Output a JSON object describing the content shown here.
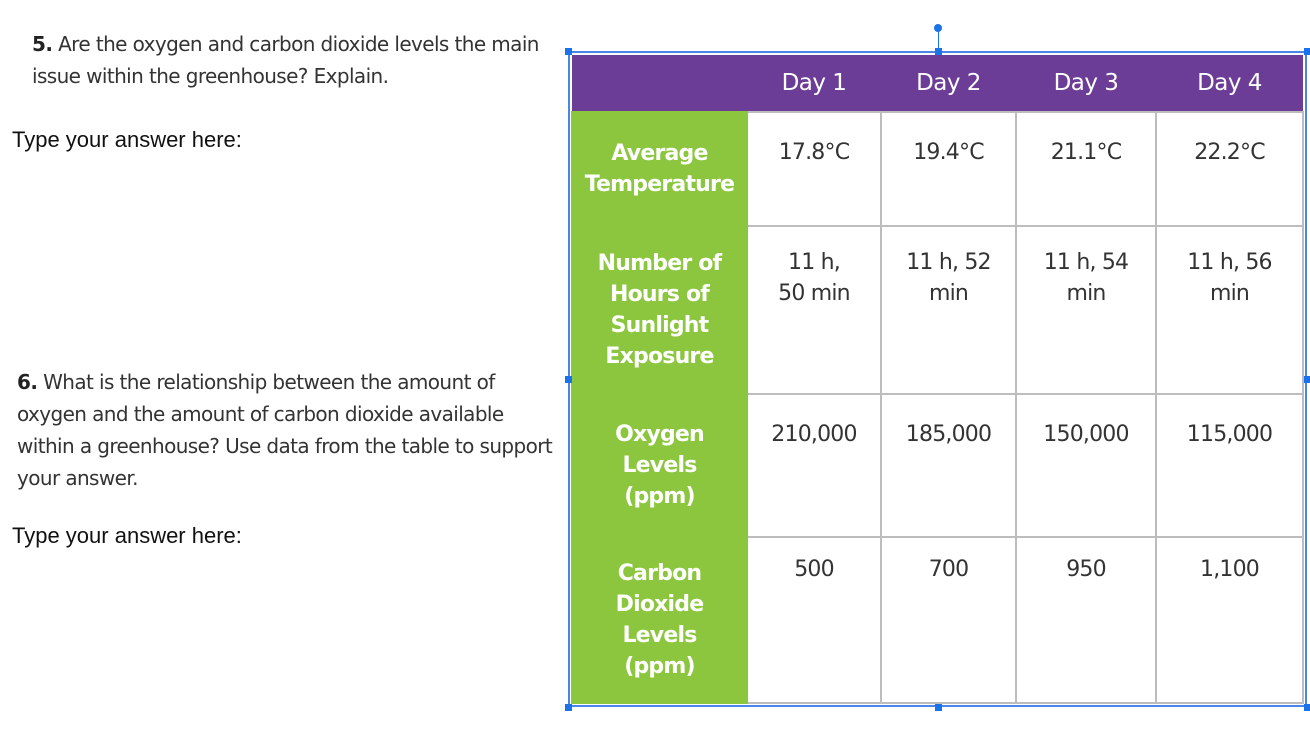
{
  "questions": [
    {
      "number": "5.",
      "text": "Are the oxygen and carbon dioxide levels the main issue within the greenhouse? Explain.",
      "answer_prompt": "Type your answer here:"
    },
    {
      "number": "6.",
      "text": "What is the relationship between the amount of oxygen and the amount of carbon dioxide available within a greenhouse? Use data from the table to support your answer.",
      "answer_prompt": "Type your answer here:"
    }
  ],
  "table": {
    "columns": [
      "",
      "Day 1",
      "Day 2",
      "Day 3",
      "Day 4"
    ],
    "rows": [
      {
        "label": "Average Temperature",
        "values": [
          "17.8°C",
          "19.4°C",
          "21.1°C",
          "22.2°C"
        ]
      },
      {
        "label": "Number of Hours of Sunlight Exposure",
        "values": [
          "11 h, 50 min",
          "11 h, 52 min",
          "11 h, 54 min",
          "11 h, 56 min"
        ]
      },
      {
        "label": "Oxygen Levels (ppm)",
        "values": [
          "210,000",
          "185,000",
          "150,000",
          "115,000"
        ]
      },
      {
        "label": "Carbon Dioxide Levels (ppm)",
        "values": [
          "500",
          "700",
          "950",
          "1,100"
        ]
      }
    ],
    "colors": {
      "header": "#6c3d96",
      "row_header": "#8cc63f",
      "selection": "#1a73e8"
    }
  }
}
